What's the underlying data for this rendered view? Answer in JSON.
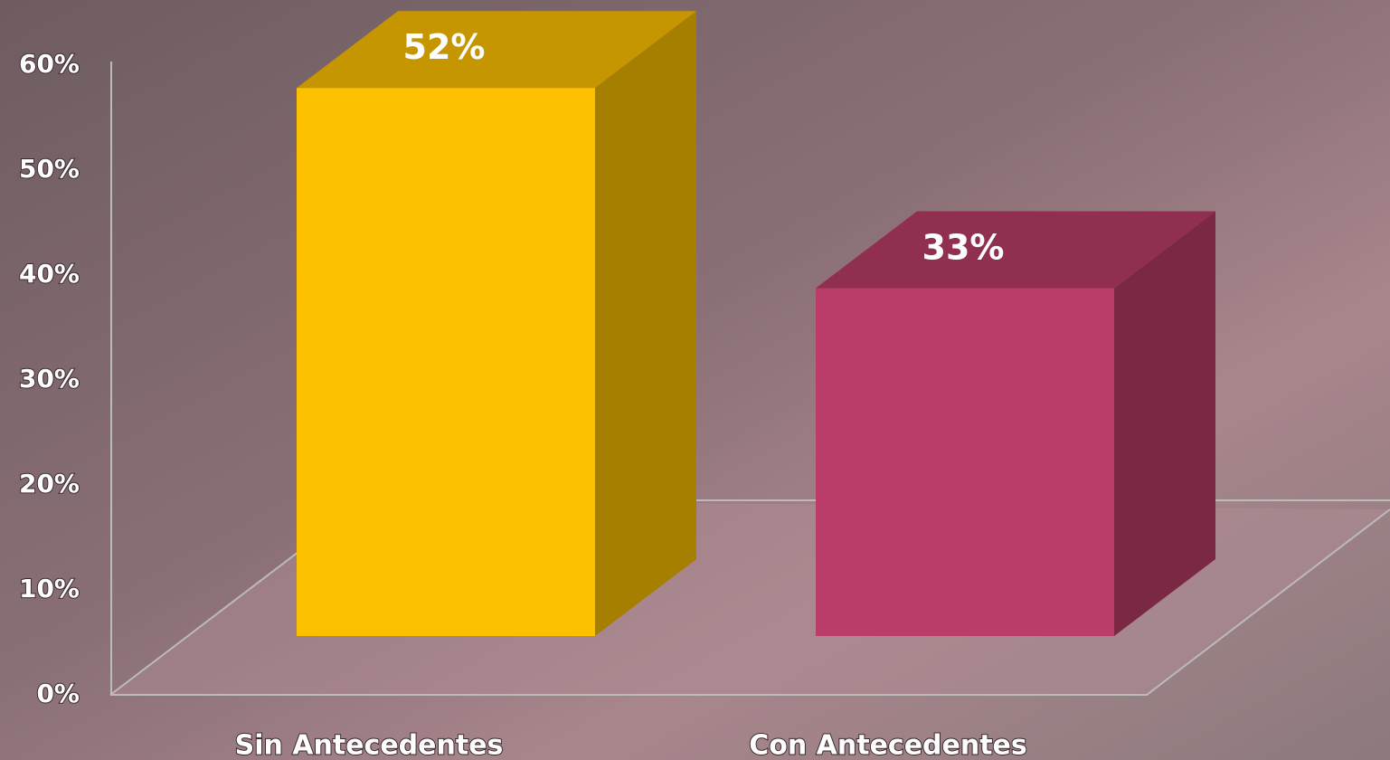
{
  "chart_data": {
    "type": "bar",
    "categories": [
      "Sin Antecedentes",
      "Con Antecedentes"
    ],
    "values": [
      52,
      33
    ],
    "value_labels": [
      "52%",
      "33%"
    ],
    "colors": [
      "#fcc000",
      "#ba3c68"
    ],
    "ylim": [
      0,
      60
    ],
    "yticks": [
      {
        "value": 0,
        "label": "0%"
      },
      {
        "value": 10,
        "label": "10%"
      },
      {
        "value": 20,
        "label": "20%"
      },
      {
        "value": 30,
        "label": "30%"
      },
      {
        "value": 40,
        "label": "40%"
      },
      {
        "value": 50,
        "label": "50%"
      },
      {
        "value": 60,
        "label": "60%"
      }
    ]
  }
}
